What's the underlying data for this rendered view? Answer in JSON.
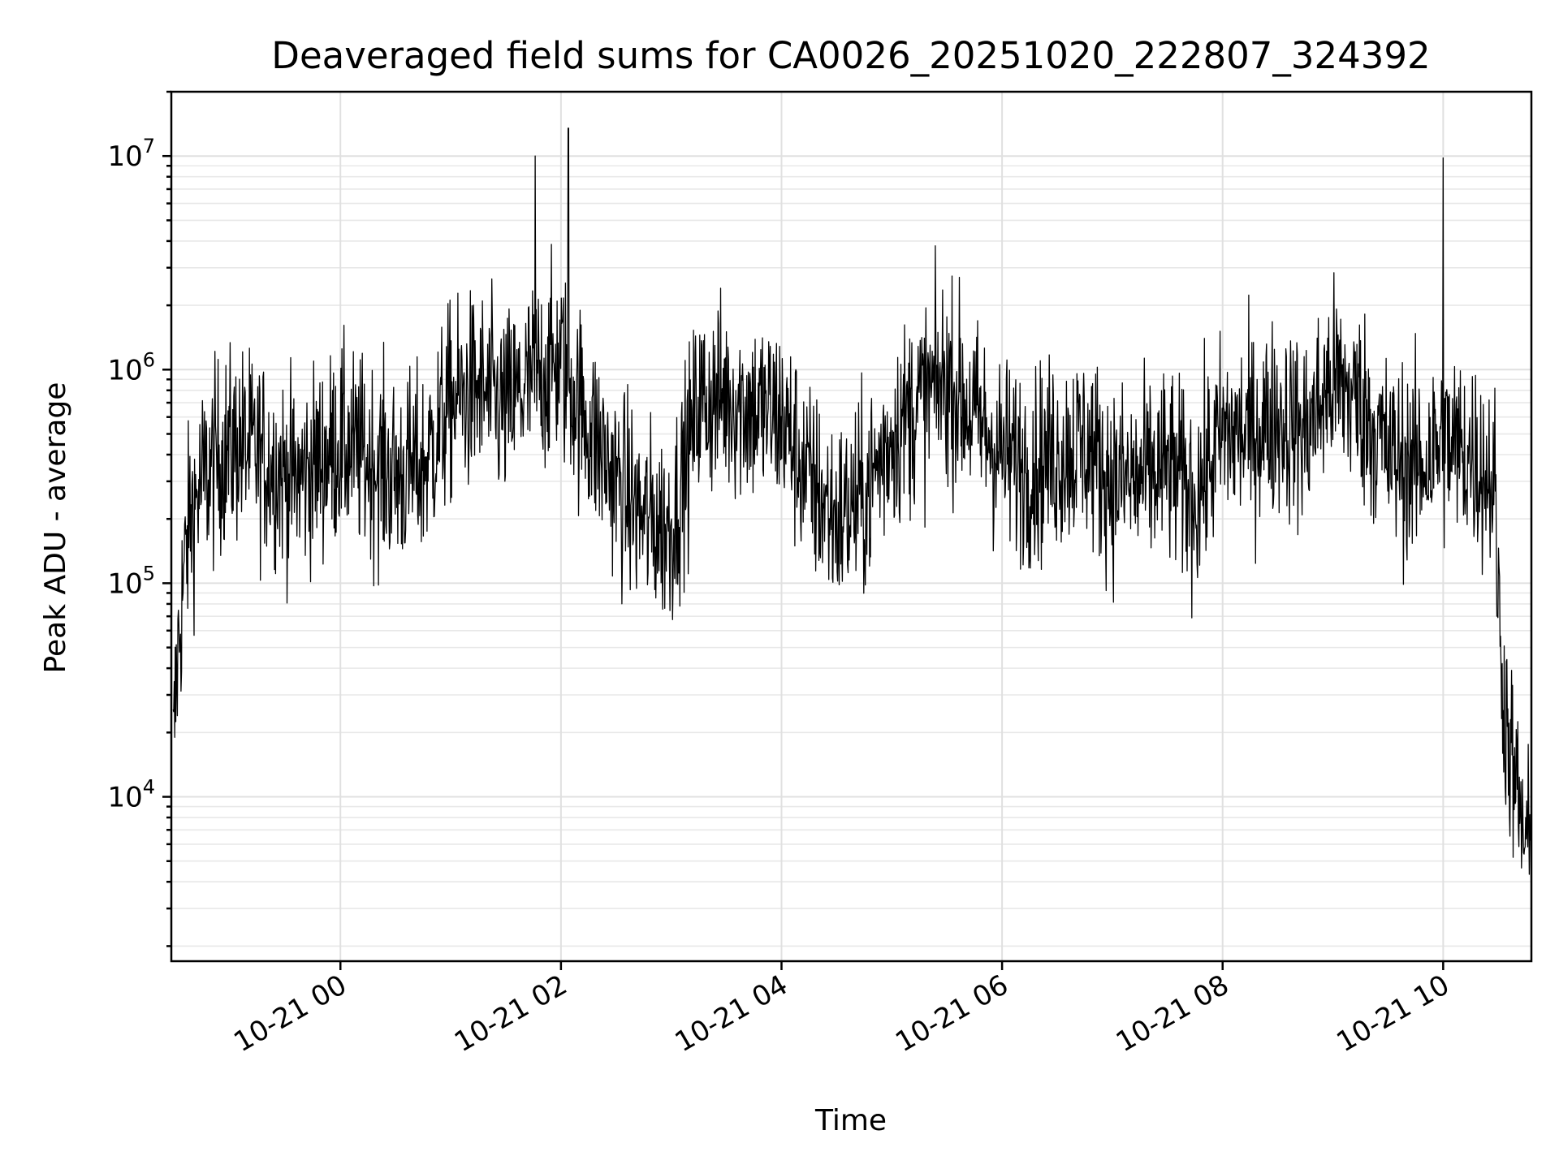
{
  "chart_data": {
    "type": "line",
    "title": "Deaveraged field sums for CA0026_20251020_222807_324392",
    "xlabel": "Time",
    "ylabel": "Peak ADU - average",
    "y_scale": "log",
    "ylim": [
      1700,
      20000000
    ],
    "xlim": [
      "2025-10-20 22:28",
      "2025-10-21 10:48"
    ],
    "grid": true,
    "grid_minor_y": true,
    "line_color": "#000000",
    "x_ticks": [
      {
        "value": "2025-10-21 00:00",
        "label": "10-21 00"
      },
      {
        "value": "2025-10-21 02:00",
        "label": "10-21 02"
      },
      {
        "value": "2025-10-21 04:00",
        "label": "10-21 04"
      },
      {
        "value": "2025-10-21 06:00",
        "label": "10-21 06"
      },
      {
        "value": "2025-10-21 08:00",
        "label": "10-21 08"
      },
      {
        "value": "2025-10-21 10:00",
        "label": "10-21 10"
      }
    ],
    "y_ticks": [
      {
        "value": 10000,
        "base": "10",
        "exp": "4"
      },
      {
        "value": 100000,
        "base": "10",
        "exp": "5"
      },
      {
        "value": 1000000,
        "base": "10",
        "exp": "6"
      },
      {
        "value": 10000000,
        "base": "10",
        "exp": "7"
      }
    ],
    "series": [
      {
        "x": [
          "2025-10-20 22:29",
          "2025-10-20 22:31",
          "2025-10-20 22:34",
          "2025-10-20 22:38",
          "2025-10-20 22:45",
          "2025-10-20 22:55",
          "2025-10-20 23:05",
          "2025-10-20 23:15",
          "2025-10-20 23:25",
          "2025-10-20 23:35",
          "2025-10-20 23:45",
          "2025-10-21 00:00",
          "2025-10-21 00:15",
          "2025-10-21 00:30",
          "2025-10-21 00:45",
          "2025-10-21 01:00",
          "2025-10-21 01:15",
          "2025-10-21 01:30",
          "2025-10-21 01:45",
          "2025-10-21 02:00",
          "2025-10-21 02:15",
          "2025-10-21 02:30",
          "2025-10-21 02:45",
          "2025-10-21 03:00",
          "2025-10-21 03:15",
          "2025-10-21 03:30",
          "2025-10-21 03:45",
          "2025-10-21 04:00",
          "2025-10-21 04:15",
          "2025-10-21 04:30",
          "2025-10-21 04:45",
          "2025-10-21 05:00",
          "2025-10-21 05:15",
          "2025-10-21 05:30",
          "2025-10-21 05:45",
          "2025-10-21 06:00",
          "2025-10-21 06:15",
          "2025-10-21 06:30",
          "2025-10-21 06:45",
          "2025-10-21 07:00",
          "2025-10-21 07:15",
          "2025-10-21 07:30",
          "2025-10-21 07:45",
          "2025-10-21 08:00",
          "2025-10-21 08:15",
          "2025-10-21 08:30",
          "2025-10-21 08:45",
          "2025-10-21 09:00",
          "2025-10-21 09:15",
          "2025-10-21 09:30",
          "2025-10-21 09:45",
          "2025-10-21 10:00",
          "2025-10-21 10:15",
          "2025-10-21 10:28",
          "2025-10-21 10:31",
          "2025-10-21 10:35",
          "2025-10-21 10:40",
          "2025-10-21 10:45",
          "2025-10-21 10:48"
        ],
        "y": [
          15000,
          40000,
          90000,
          200000,
          300000,
          400000,
          450000,
          400000,
          350000,
          300000,
          350000,
          450000,
          380000,
          320000,
          350000,
          700000,
          800000,
          650000,
          900000,
          1100000,
          550000,
          300000,
          200000,
          180000,
          700000,
          750000,
          650000,
          600000,
          300000,
          200000,
          250000,
          500000,
          700000,
          900000,
          600000,
          400000,
          350000,
          400000,
          450000,
          300000,
          300000,
          350000,
          250000,
          500000,
          500000,
          600000,
          500000,
          900000,
          700000,
          400000,
          350000,
          450000,
          400000,
          300000,
          50000,
          20000,
          10000,
          6000,
          5000
        ]
      }
    ],
    "series_note_peaks": [
      {
        "x": "2025-10-21 01:46",
        "y": 10000000
      },
      {
        "x": "2025-10-21 02:04",
        "y": 13500000
      },
      {
        "x": "2025-10-21 10:00",
        "y": 9800000
      }
    ]
  }
}
